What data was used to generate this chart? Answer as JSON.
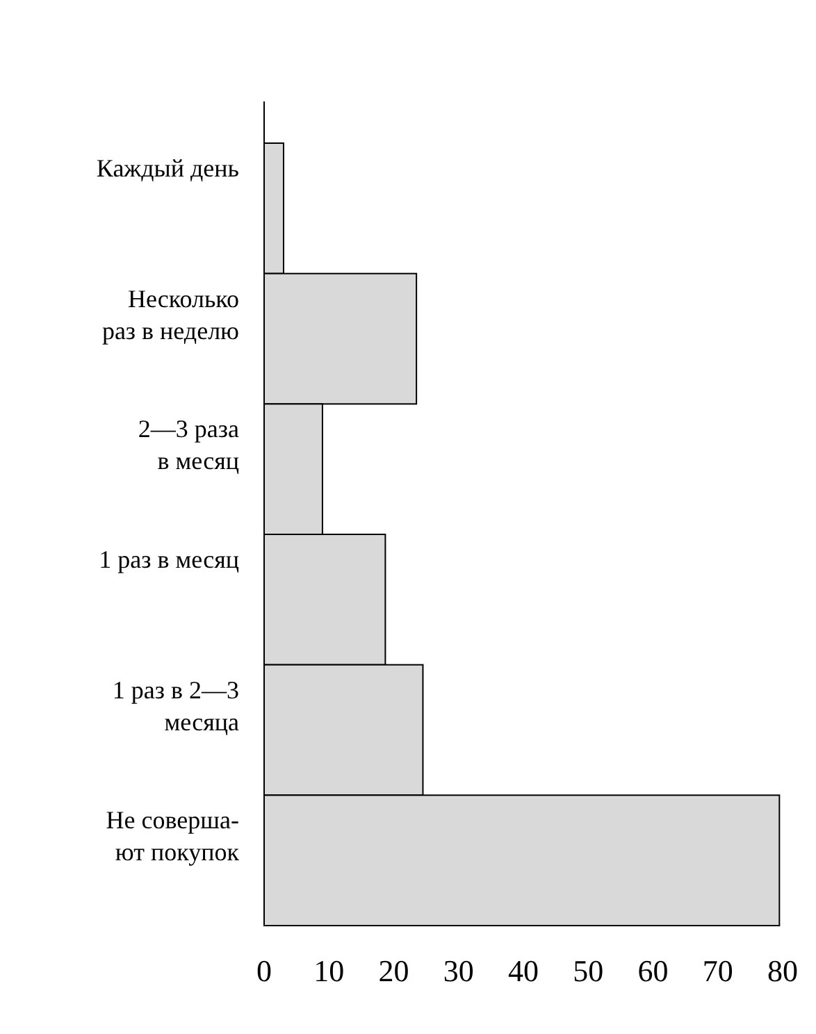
{
  "chart_data": {
    "type": "bar",
    "orientation": "horizontal",
    "categories": [
      "Каждый день",
      "Несколько\nраз в неделю",
      "2—3 раза\nв месяц",
      "1 раз в месяц",
      "1 раз в 2—3\nмесяца",
      "Не соверша-\nют покупок"
    ],
    "values": [
      3,
      23.5,
      9,
      18.7,
      24.5,
      79.5
    ],
    "color": "#d9d9d9",
    "xlim": [
      0,
      80
    ],
    "xticks": [
      0,
      10,
      20,
      30,
      40,
      50,
      60,
      70,
      80
    ],
    "grid": false
  }
}
